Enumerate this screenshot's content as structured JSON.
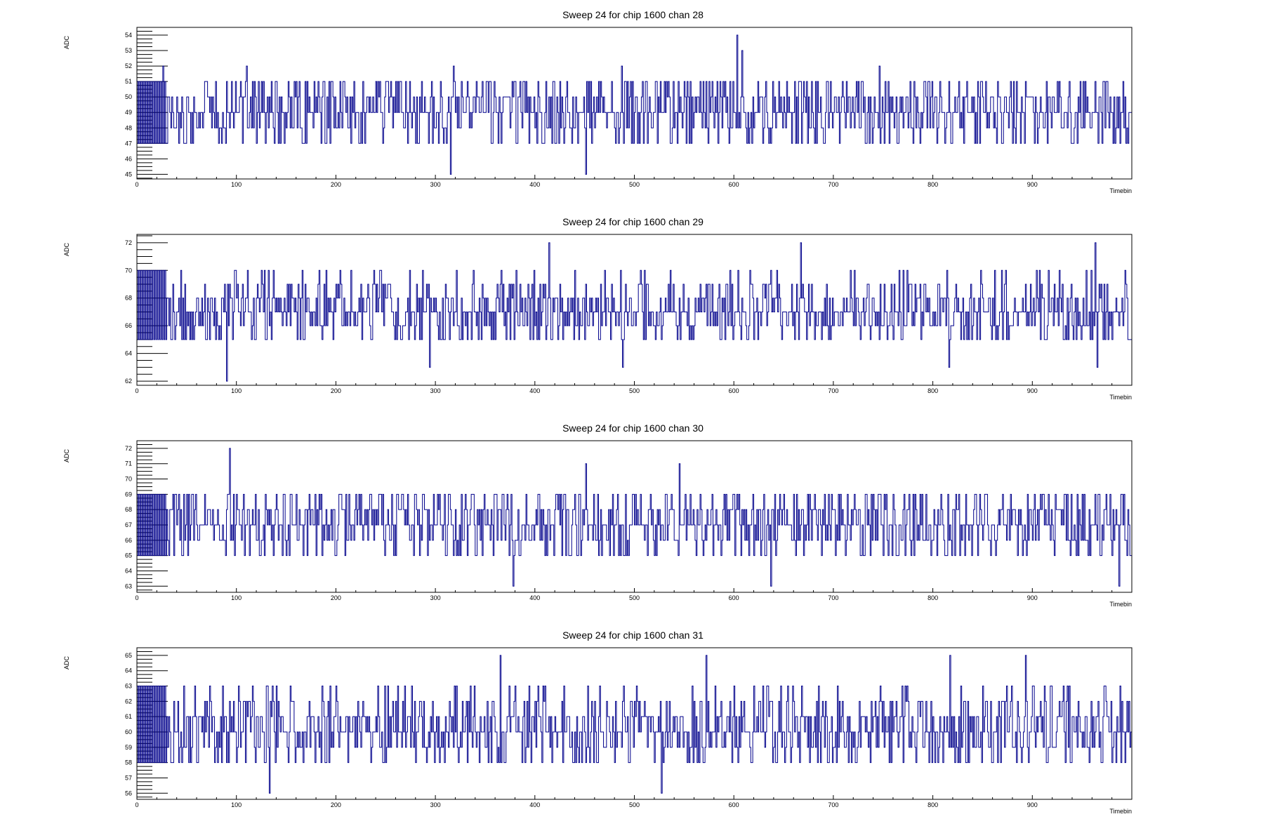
{
  "colors": {
    "trace": "#00008b",
    "frame": "#000000",
    "background": "#ffffff"
  },
  "chart_data": [
    {
      "type": "line",
      "title": "Sweep 24 for chip 1600 chan 28",
      "xlabel": "Timebin",
      "ylabel": "ADC",
      "xlim": [
        0,
        1000
      ],
      "ylim": [
        44.7,
        54.5
      ],
      "xticks": [
        "0",
        "100",
        "200",
        "300",
        "400",
        "500",
        "600",
        "700",
        "800",
        "900"
      ],
      "yticks": [
        "45",
        "46",
        "47",
        "48",
        "49",
        "50",
        "51",
        "52",
        "53",
        "54"
      ],
      "baseline": 49,
      "noise_low": 47,
      "noise_high": 51,
      "spikes": [
        [
          26,
          52
        ],
        [
          110,
          52
        ],
        [
          315,
          45
        ],
        [
          318,
          52
        ],
        [
          451,
          45
        ],
        [
          487,
          52
        ],
        [
          603,
          54
        ],
        [
          608,
          53
        ],
        [
          746,
          52
        ]
      ],
      "grid": false
    },
    {
      "type": "line",
      "title": "Sweep 24 for chip 1600 chan 29",
      "xlabel": "Timebin",
      "ylabel": "ADC",
      "xlim": [
        0,
        1000
      ],
      "ylim": [
        61.7,
        72.6
      ],
      "xticks": [
        "0",
        "100",
        "200",
        "300",
        "400",
        "500",
        "600",
        "700",
        "800",
        "900"
      ],
      "yticks": [
        "62",
        "64",
        "66",
        "68",
        "70",
        "72"
      ],
      "baseline": 67,
      "noise_low": 65,
      "noise_high": 70,
      "spikes": [
        [
          90,
          62
        ],
        [
          294,
          63
        ],
        [
          414,
          72
        ],
        [
          488,
          63
        ],
        [
          667,
          72
        ],
        [
          816,
          63
        ],
        [
          963,
          72
        ],
        [
          965,
          63
        ]
      ],
      "grid": false
    },
    {
      "type": "line",
      "title": "Sweep 24 for chip 1600 chan 30",
      "xlabel": "Timebin",
      "ylabel": "ADC",
      "xlim": [
        0,
        1000
      ],
      "ylim": [
        62.6,
        72.5
      ],
      "xticks": [
        "0",
        "100",
        "200",
        "300",
        "400",
        "500",
        "600",
        "700",
        "800",
        "900"
      ],
      "yticks": [
        "63",
        "64",
        "65",
        "66",
        "67",
        "68",
        "69",
        "70",
        "71",
        "72"
      ],
      "baseline": 67,
      "noise_low": 65,
      "noise_high": 69,
      "spikes": [
        [
          93,
          72
        ],
        [
          378,
          63
        ],
        [
          451,
          71
        ],
        [
          545,
          71
        ],
        [
          637,
          63
        ],
        [
          987,
          63
        ]
      ],
      "grid": false
    },
    {
      "type": "line",
      "title": "Sweep 24 for chip 1600 chan 31",
      "xlabel": "Timebin",
      "ylabel": "ADC",
      "xlim": [
        0,
        1000
      ],
      "ylim": [
        55.6,
        65.5
      ],
      "xticks": [
        "0",
        "100",
        "200",
        "300",
        "400",
        "500",
        "600",
        "700",
        "800",
        "900"
      ],
      "yticks": [
        "56",
        "57",
        "58",
        "59",
        "60",
        "61",
        "62",
        "63",
        "64",
        "65"
      ],
      "baseline": 60,
      "noise_low": 58,
      "noise_high": 63,
      "spikes": [
        [
          133,
          56
        ],
        [
          365,
          65
        ],
        [
          527,
          56
        ],
        [
          572,
          65
        ],
        [
          817,
          65
        ],
        [
          893,
          65
        ]
      ],
      "grid": false
    }
  ]
}
